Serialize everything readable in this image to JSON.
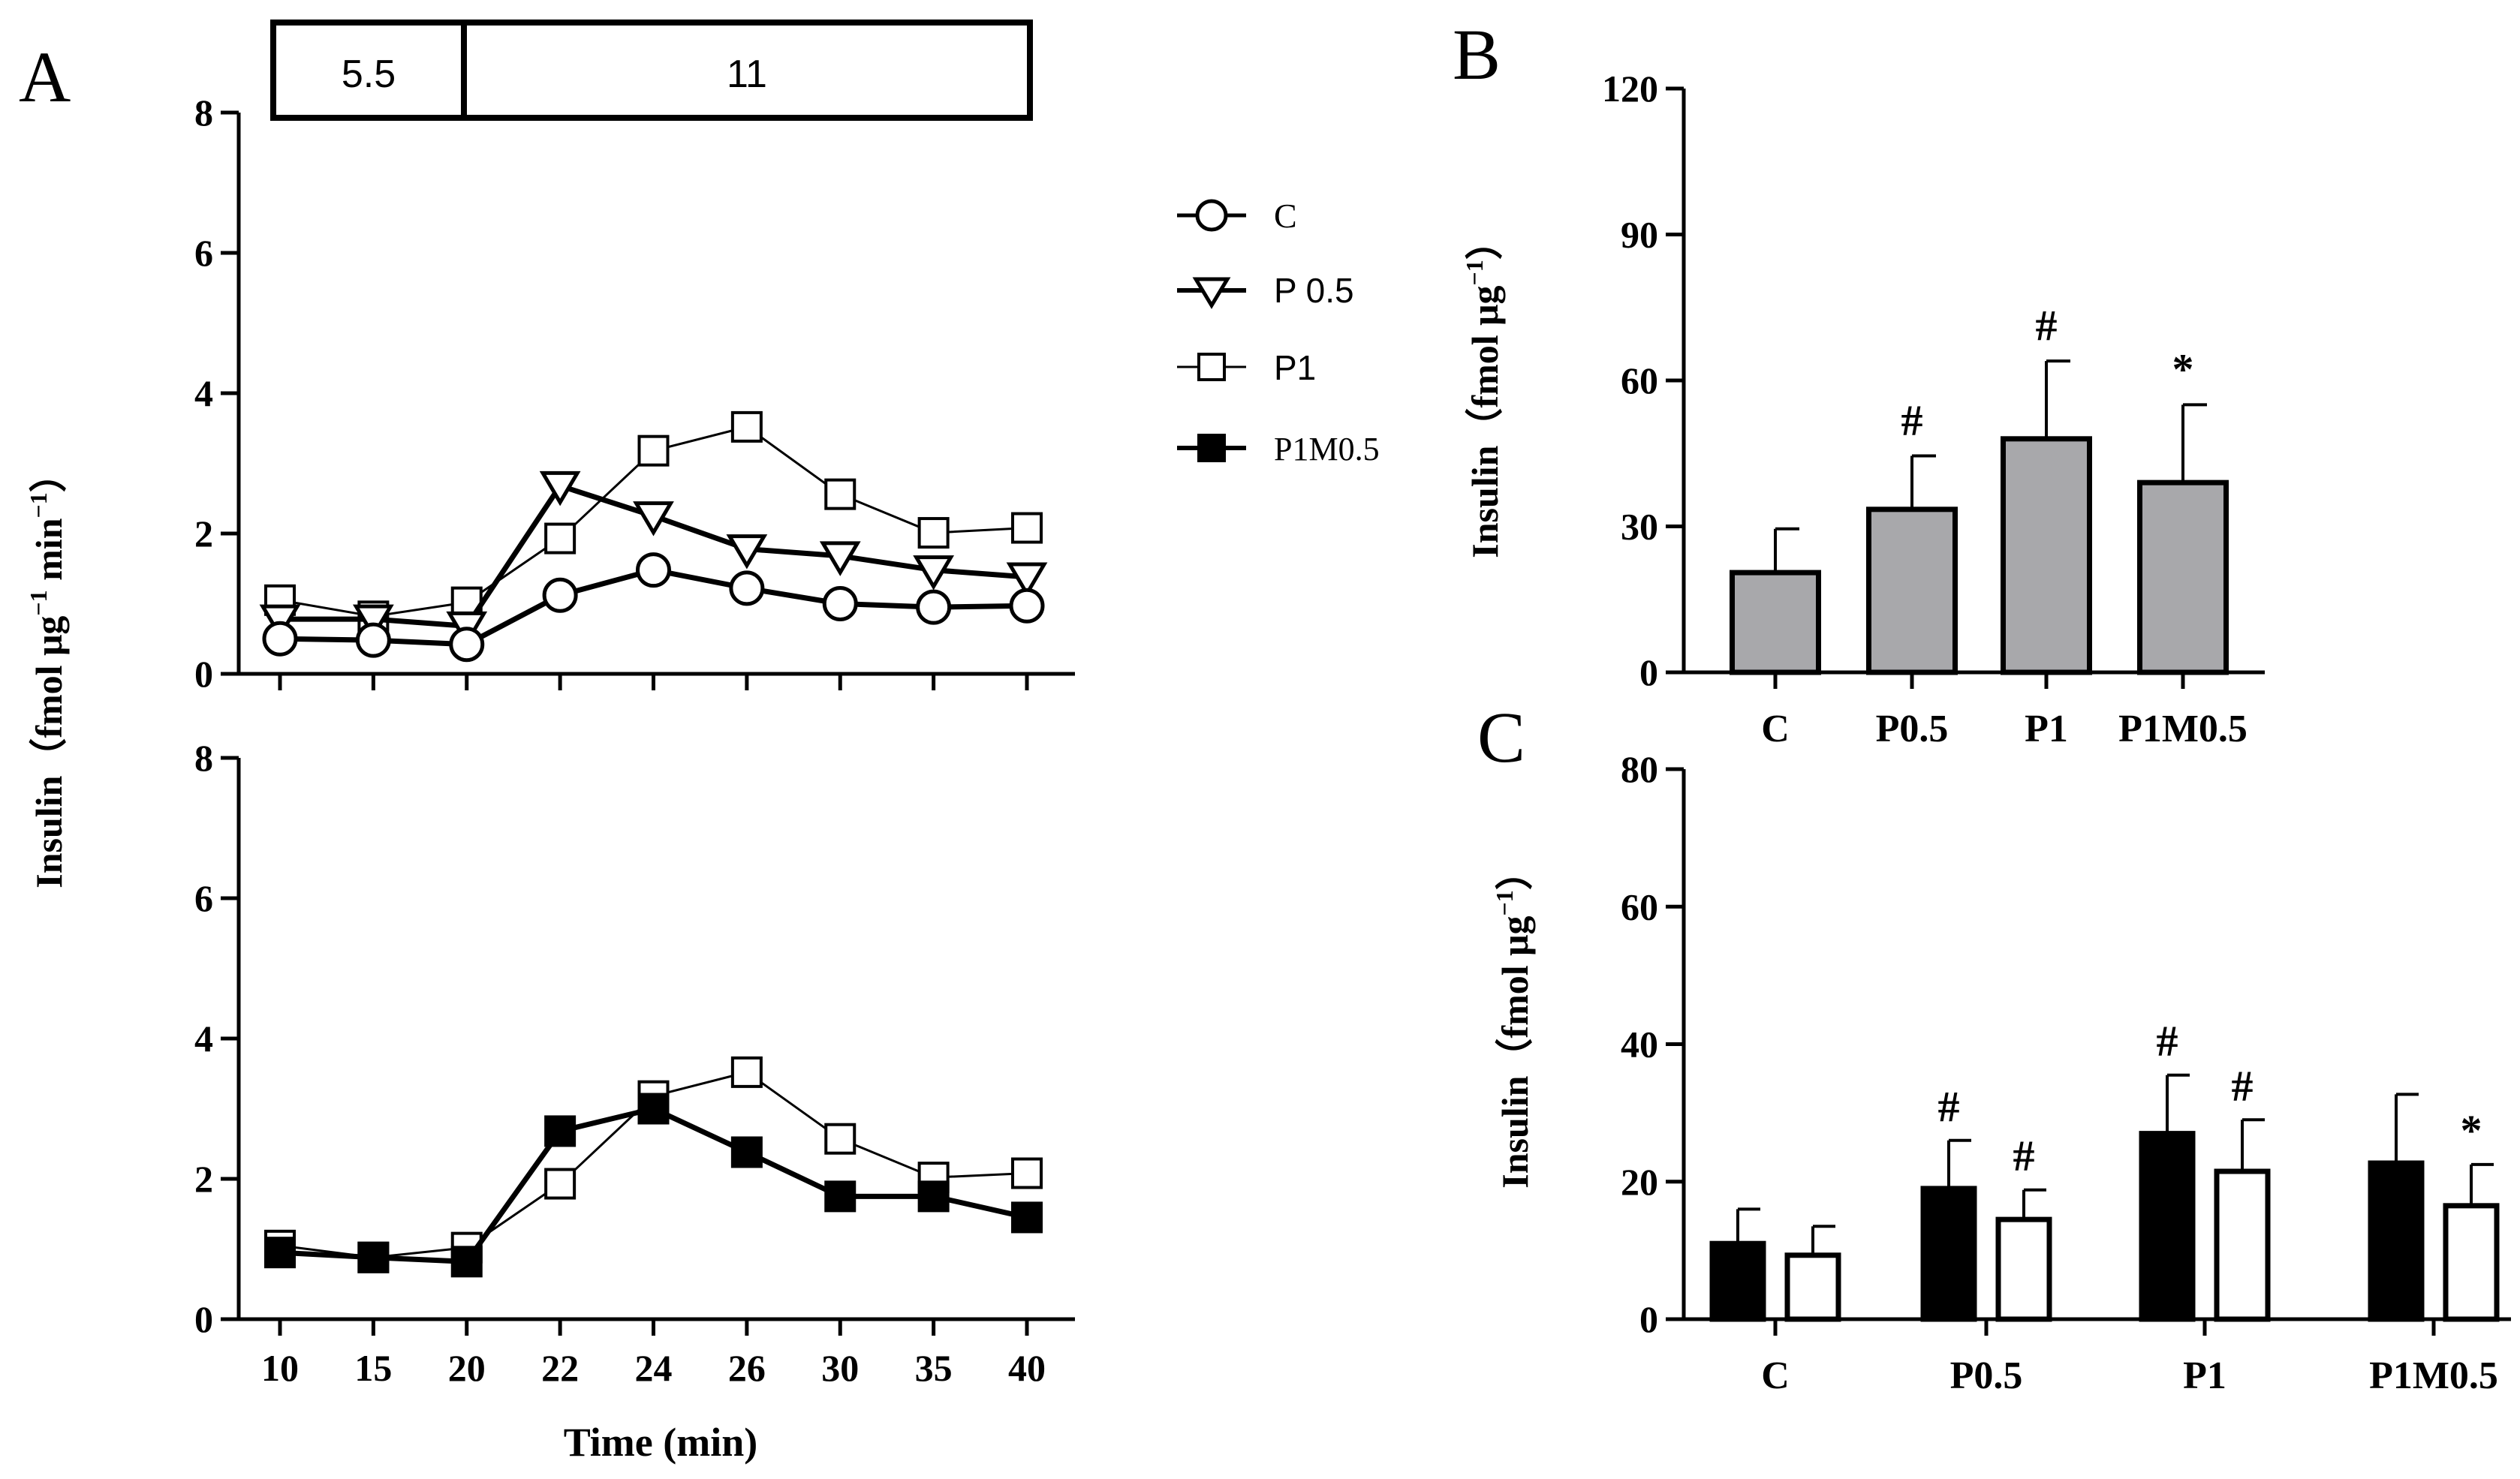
{
  "panels": {
    "A": {
      "letter": "A"
    },
    "B": {
      "letter": "B"
    },
    "C": {
      "letter": "C"
    }
  },
  "glucose_bar": {
    "low": "5.5",
    "high": "11"
  },
  "legend": [
    {
      "label": "C",
      "marker": "circle-open-icon"
    },
    {
      "label": "P 0.5",
      "marker": "triangle-down-open-icon"
    },
    {
      "label": "P1",
      "marker": "square-open-icon"
    },
    {
      "label": "P1M0.5",
      "marker": "square-filled-icon"
    }
  ],
  "colors": {
    "ink": "#000000",
    "paper": "#ffffff",
    "gray_bar": "#a8a8ab"
  },
  "chart_data": [
    {
      "id": "A-top",
      "type": "line",
      "title": "",
      "xlabel": "Time (min)",
      "ylabel": "Insulin（fmol μg⁻¹ min⁻¹）",
      "ylabel_parts": {
        "main": "Insulin（fmol μg",
        "sup1": "−1",
        "mid": " min",
        "sup2": "−1",
        "end": "）"
      },
      "categories": [
        "10",
        "15",
        "20",
        "22",
        "24",
        "26",
        "30",
        "35",
        "40"
      ],
      "y_ticks": [
        0,
        2,
        4,
        6,
        8
      ],
      "ylim": [
        0,
        8
      ],
      "series": [
        {
          "name": "P1",
          "values": [
            1.05,
            0.82,
            1.02,
            1.93,
            3.18,
            3.52,
            2.56,
            2.01,
            2.08
          ]
        },
        {
          "name": "P 0.5",
          "values": [
            0.78,
            0.78,
            0.68,
            2.68,
            2.25,
            1.78,
            1.68,
            1.48,
            1.38
          ]
        },
        {
          "name": "C",
          "values": [
            0.5,
            0.48,
            0.42,
            1.12,
            1.48,
            1.22,
            1.0,
            0.95,
            0.97
          ]
        }
      ]
    },
    {
      "id": "A-bottom",
      "type": "line",
      "title": "",
      "xlabel": "Time (min)",
      "ylabel": "",
      "categories": [
        "10",
        "15",
        "20",
        "22",
        "24",
        "26",
        "30",
        "35",
        "40"
      ],
      "y_ticks": [
        0,
        2,
        4,
        6,
        8
      ],
      "ylim": [
        0,
        8
      ],
      "series": [
        {
          "name": "P1",
          "values": [
            1.05,
            0.88,
            1.02,
            1.93,
            3.18,
            3.52,
            2.57,
            2.02,
            2.08
          ]
        },
        {
          "name": "P1M0.5",
          "values": [
            0.95,
            0.88,
            0.82,
            2.68,
            3.0,
            2.38,
            1.75,
            1.75,
            1.45
          ]
        }
      ]
    },
    {
      "id": "B",
      "type": "bar",
      "title": "",
      "xlabel": "",
      "ylabel": "Insulin（fmol μg⁻¹）",
      "ylabel_parts": {
        "main": "Insulin（fmol μg",
        "sup1": "−1",
        "end": "）"
      },
      "categories": [
        "C",
        "P0.5",
        "P1",
        "P1M0.5"
      ],
      "values": [
        20.5,
        33.5,
        48,
        39
      ],
      "errors": [
        9,
        11,
        16,
        16
      ],
      "annotations": [
        "",
        "#",
        "#",
        "*"
      ],
      "y_ticks": [
        0,
        30,
        60,
        90,
        120
      ],
      "ylim": [
        0,
        120
      ]
    },
    {
      "id": "C",
      "type": "bar",
      "title": "",
      "xlabel": "",
      "ylabel": "Insulin（fmol μg⁻¹）",
      "ylabel_parts": {
        "main": "Insulin（fmol μg",
        "sup1": "−1",
        "end": "）"
      },
      "categories": [
        "C",
        "P0.5",
        "P1",
        "P1M0.5"
      ],
      "series": [
        {
          "name": "filled",
          "values": [
            11,
            19,
            27,
            22.7
          ],
          "errors": [
            5,
            7,
            8.5,
            10
          ],
          "annotations": [
            "",
            "#",
            "#",
            ""
          ]
        },
        {
          "name": "open",
          "values": [
            9.3,
            14.5,
            21.5,
            16.5
          ],
          "errors": [
            4.2,
            4.3,
            7.5,
            6
          ],
          "annotations": [
            "",
            "#",
            "#",
            "*"
          ]
        }
      ],
      "y_ticks": [
        0,
        20,
        40,
        60,
        80
      ],
      "ylim": [
        0,
        80
      ]
    }
  ]
}
